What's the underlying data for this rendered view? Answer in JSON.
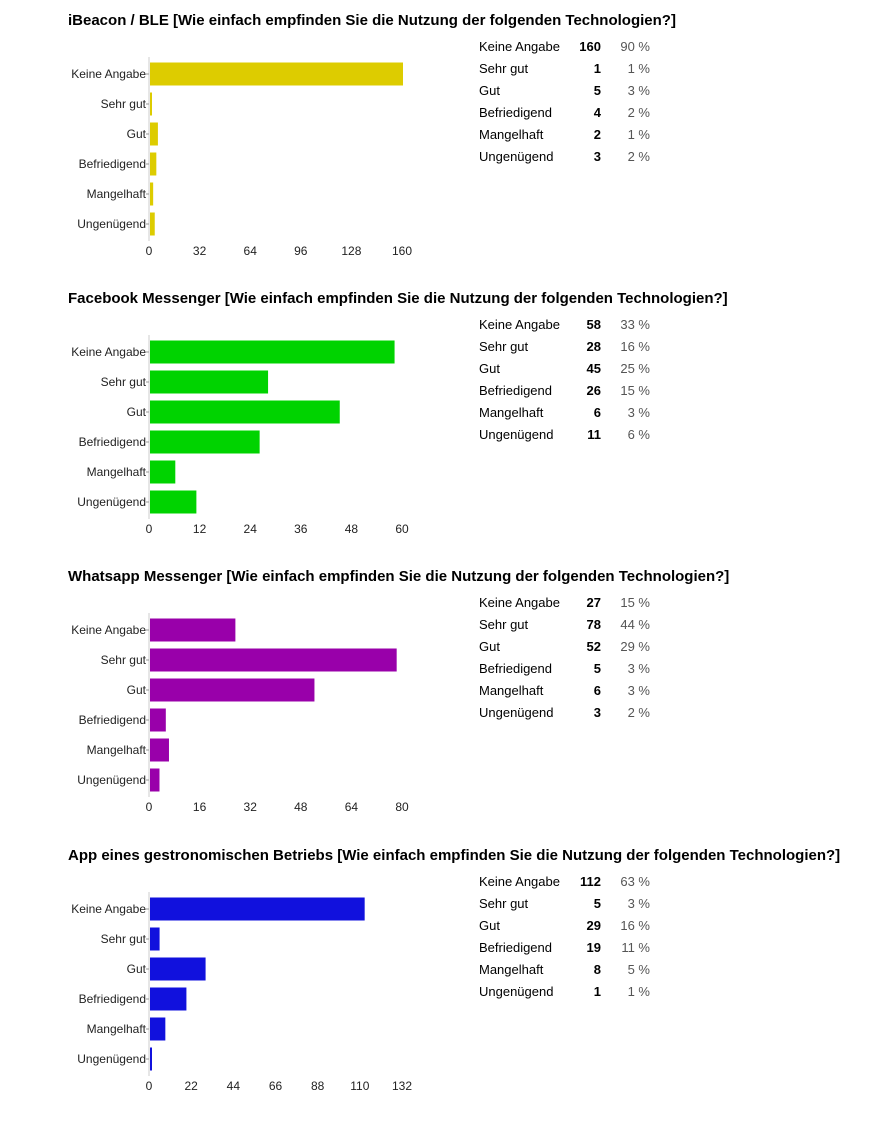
{
  "chart_data": [
    {
      "type": "bar",
      "orientation": "horizontal",
      "title": "iBeacon / BLE [Wie einfach empfinden Sie die Nutzung der folgenden Technologien?]",
      "categories": [
        "Keine Angabe",
        "Sehr gut",
        "Gut",
        "Befriedigend",
        "Mangelhaft",
        "Ungenügend"
      ],
      "values": [
        160,
        1,
        5,
        4,
        2,
        3
      ],
      "percents": [
        "90 %",
        "1 %",
        "3 %",
        "2 %",
        "1 %",
        "2 %"
      ],
      "xlim": [
        0,
        160
      ],
      "ticks": [
        "0",
        "32",
        "64",
        "96",
        "128",
        "160"
      ],
      "color": "#ddcc00"
    },
    {
      "type": "bar",
      "orientation": "horizontal",
      "title": "Facebook Messenger [Wie einfach empfinden Sie die Nutzung der folgenden Technologien?]",
      "categories": [
        "Keine Angabe",
        "Sehr gut",
        "Gut",
        "Befriedigend",
        "Mangelhaft",
        "Ungenügend"
      ],
      "values": [
        58,
        28,
        45,
        26,
        6,
        11
      ],
      "percents": [
        "33 %",
        "16 %",
        "25 %",
        "15 %",
        "3 %",
        "6 %"
      ],
      "xlim": [
        0,
        60
      ],
      "ticks": [
        "0",
        "12",
        "24",
        "36",
        "48",
        "60"
      ],
      "color": "#00d300"
    },
    {
      "type": "bar",
      "orientation": "horizontal",
      "title": "Whatsapp Messenger [Wie einfach empfinden Sie die Nutzung der folgenden Technologien?]",
      "categories": [
        "Keine Angabe",
        "Sehr gut",
        "Gut",
        "Befriedigend",
        "Mangelhaft",
        "Ungenügend"
      ],
      "values": [
        27,
        78,
        52,
        5,
        6,
        3
      ],
      "percents": [
        "15 %",
        "44 %",
        "29 %",
        "3 %",
        "3 %",
        "2 %"
      ],
      "xlim": [
        0,
        80
      ],
      "ticks": [
        "0",
        "16",
        "32",
        "48",
        "64",
        "80"
      ],
      "color": "#9900aa"
    },
    {
      "type": "bar",
      "orientation": "horizontal",
      "title": "App eines gestronomischen Betriebs [Wie einfach empfinden Sie die Nutzung der folgenden Technologien?]",
      "categories": [
        "Keine Angabe",
        "Sehr gut",
        "Gut",
        "Befriedigend",
        "Mangelhaft",
        "Ungenügend"
      ],
      "values": [
        112,
        5,
        29,
        19,
        8,
        1
      ],
      "percents": [
        "63 %",
        "3 %",
        "16 %",
        "11 %",
        "5 %",
        "1 %"
      ],
      "xlim": [
        0,
        132
      ],
      "ticks": [
        "0",
        "22",
        "44",
        "66",
        "88",
        "110",
        "132"
      ],
      "color": "#1111dd"
    }
  ]
}
